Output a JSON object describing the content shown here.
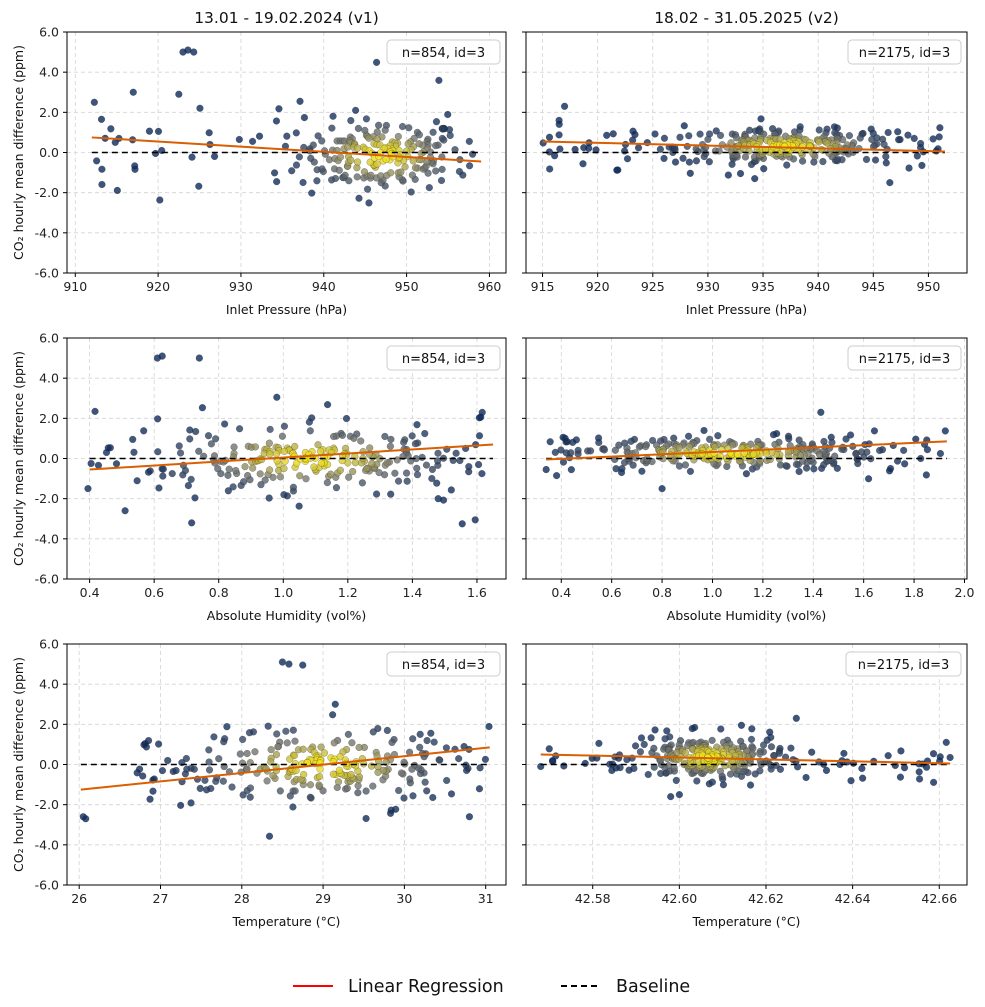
{
  "legend": {
    "regression_label": "Linear Regression",
    "baseline_label": "Baseline",
    "regression_color": "#ff0000",
    "baseline_color": "#000000"
  },
  "colors": {
    "regression": "#d95f02",
    "baseline": "#000000",
    "point_low": "#0d2a5c",
    "point_mid": "#7a7a70",
    "point_high": "#f5e31a",
    "grid": "#d3d3d3"
  },
  "chart_data": [
    {
      "type": "scatter",
      "id": "v1-pressure",
      "title": "13.01 - 19.02.2024 (v1)",
      "xlabel": "Inlet Pressure (hPa)",
      "ylabel": "CO₂ hourly mean difference (ppm)",
      "annotation": "n=854, id=3",
      "xlim": [
        909,
        962
      ],
      "ylim": [
        -6,
        6
      ],
      "xticks": [
        910,
        920,
        930,
        940,
        950,
        960
      ],
      "xtick_labels": [
        "910",
        "920",
        "930",
        "940",
        "950",
        "960"
      ],
      "yticks": [
        -6,
        -4,
        -2,
        0,
        2,
        4,
        6
      ],
      "ytick_labels": [
        "-6.0",
        "-4.0",
        "-2.0",
        "0.0",
        "2.0",
        "4.0",
        "6.0"
      ],
      "regression": {
        "x": [
          912,
          959
        ],
        "y": [
          0.75,
          -0.45
        ]
      },
      "baseline": {
        "x": [
          912,
          959
        ],
        "y": [
          0,
          0
        ]
      },
      "cloud": {
        "cx": 947,
        "cy": -0.15,
        "sx": 5,
        "sy": 0.9,
        "cn": 170,
        "xmin": 912,
        "xmax": 959,
        "un": 60,
        "uy": 0.3,
        "usy": 1.1
      },
      "outliers": [
        [
          923,
          5.0
        ],
        [
          923.6,
          5.1
        ],
        [
          924.3,
          5.0
        ],
        [
          917,
          3.0
        ],
        [
          922.5,
          2.9
        ],
        [
          912.3,
          2.5
        ]
      ]
    },
    {
      "type": "scatter",
      "id": "v2-pressure",
      "title": "18.02 - 31.05.2025 (v2)",
      "xlabel": "Inlet Pressure (hPa)",
      "ylabel": "",
      "annotation": "n=2175, id=3",
      "xlim": [
        913.5,
        953.5
      ],
      "ylim": [
        -6,
        6
      ],
      "xticks": [
        915,
        920,
        925,
        930,
        935,
        940,
        945,
        950
      ],
      "xtick_labels": [
        "915",
        "920",
        "925",
        "930",
        "935",
        "940",
        "945",
        "950"
      ],
      "yticks": [
        -6,
        -4,
        -2,
        0,
        2,
        4,
        6
      ],
      "ytick_labels": [
        "-6.0",
        "-4.0",
        "-2.0",
        "0.0",
        "2.0",
        "4.0",
        "6.0"
      ],
      "regression": {
        "x": [
          915,
          951.5
        ],
        "y": [
          0.55,
          0.05
        ]
      },
      "baseline": {
        "x": [
          915,
          951.5
        ],
        "y": [
          0,
          0
        ]
      },
      "cloud": {
        "cx": 937,
        "cy": 0.3,
        "sx": 5,
        "sy": 0.42,
        "cn": 200,
        "xmin": 915,
        "xmax": 951.5,
        "un": 90,
        "uy": 0.35,
        "usy": 0.55
      },
      "outliers": [
        [
          917,
          2.3
        ],
        [
          916.5,
          1.6
        ],
        [
          946.5,
          -1.5
        ]
      ]
    },
    {
      "type": "scatter",
      "id": "v1-humidity",
      "title": "",
      "xlabel": "Absolute Humidity (vol%)",
      "ylabel": "CO₂ hourly mean difference (ppm)",
      "annotation": "n=854, id=3",
      "xlim": [
        0.33,
        1.69
      ],
      "ylim": [
        -6,
        6
      ],
      "xticks": [
        0.4,
        0.6,
        0.8,
        1.0,
        1.2,
        1.4,
        1.6
      ],
      "xtick_labels": [
        "0.4",
        "0.6",
        "0.8",
        "1.0",
        "1.2",
        "1.4",
        "1.6"
      ],
      "yticks": [
        -6,
        -4,
        -2,
        0,
        2,
        4,
        6
      ],
      "ytick_labels": [
        "-6.0",
        "-4.0",
        "-2.0",
        "0.0",
        "2.0",
        "4.0",
        "6.0"
      ],
      "regression": {
        "x": [
          0.4,
          1.65
        ],
        "y": [
          -0.55,
          0.7
        ]
      },
      "baseline": {
        "x": [
          0.4,
          1.65
        ],
        "y": [
          0,
          0
        ]
      },
      "cloud": {
        "cx": 1.08,
        "cy": 0.0,
        "sx": 0.22,
        "sy": 0.85,
        "cn": 180,
        "xmin": 0.4,
        "xmax": 1.65,
        "un": 70,
        "uy": 0.0,
        "usy": 1.1
      },
      "outliers": [
        [
          0.61,
          5.0
        ],
        [
          0.625,
          5.1
        ],
        [
          0.74,
          5.0
        ],
        [
          0.98,
          3.05
        ],
        [
          0.51,
          -2.6
        ],
        [
          1.48,
          -2.0
        ],
        [
          0.395,
          -1.5
        ]
      ]
    },
    {
      "type": "scatter",
      "id": "v2-humidity",
      "title": "",
      "xlabel": "Absolute Humidity (vol%)",
      "ylabel": "",
      "annotation": "n=2175, id=3",
      "xlim": [
        0.26,
        2.01
      ],
      "ylim": [
        -6,
        6
      ],
      "xticks": [
        0.4,
        0.6,
        0.8,
        1.0,
        1.2,
        1.4,
        1.6,
        1.8,
        2.0
      ],
      "xtick_labels": [
        "0.4",
        "0.6",
        "0.8",
        "1.0",
        "1.2",
        "1.4",
        "1.6",
        "1.8",
        "2.0"
      ],
      "yticks": [
        -6,
        -4,
        -2,
        0,
        2,
        4,
        6
      ],
      "ytick_labels": [
        "-6.0",
        "-4.0",
        "-2.0",
        "0.0",
        "2.0",
        "4.0",
        "6.0"
      ],
      "regression": {
        "x": [
          0.34,
          1.93
        ],
        "y": [
          -0.05,
          0.85
        ]
      },
      "baseline": {
        "x": [
          0.34,
          1.93
        ],
        "y": [
          0,
          0
        ]
      },
      "cloud": {
        "cx": 1.05,
        "cy": 0.25,
        "sx": 0.3,
        "sy": 0.4,
        "cn": 200,
        "xmin": 0.34,
        "xmax": 1.93,
        "un": 90,
        "uy": 0.3,
        "usy": 0.5
      },
      "outliers": [
        [
          1.43,
          2.3
        ],
        [
          0.34,
          -0.55
        ],
        [
          0.8,
          -1.5
        ]
      ]
    },
    {
      "type": "scatter",
      "id": "v1-temperature",
      "title": "",
      "xlabel": "Temperature (°C)",
      "ylabel": "CO₂ hourly mean difference (ppm)",
      "annotation": "n=854, id=3",
      "xlim": [
        25.85,
        31.25
      ],
      "ylim": [
        -6,
        6
      ],
      "xticks": [
        26,
        27,
        28,
        29,
        30,
        31
      ],
      "xtick_labels": [
        "26",
        "27",
        "28",
        "29",
        "30",
        "31"
      ],
      "yticks": [
        -6,
        -4,
        -2,
        0,
        2,
        4,
        6
      ],
      "ytick_labels": [
        "-6.0",
        "-4.0",
        "-2.0",
        "0.0",
        "2.0",
        "4.0",
        "6.0"
      ],
      "regression": {
        "x": [
          26.02,
          31.05
        ],
        "y": [
          -1.25,
          0.85
        ]
      },
      "baseline": {
        "x": [
          26.02,
          31.05
        ],
        "y": [
          0,
          0
        ]
      },
      "cloud": {
        "cx": 29.0,
        "cy": 0.0,
        "sx": 0.8,
        "sy": 0.95,
        "cn": 180,
        "xmin": 26.7,
        "xmax": 31.05,
        "un": 70,
        "uy": -0.1,
        "usy": 1.0
      },
      "outliers": [
        [
          28.5,
          5.1
        ],
        [
          28.58,
          5.0
        ],
        [
          28.75,
          4.95
        ],
        [
          26.05,
          -2.6
        ],
        [
          26.08,
          -2.7
        ],
        [
          29.15,
          3.0
        ],
        [
          30.8,
          -2.6
        ]
      ]
    },
    {
      "type": "scatter",
      "id": "v2-temperature",
      "title": "",
      "xlabel": "Temperature (°C)",
      "ylabel": "",
      "annotation": "n=2175, id=3",
      "xlim": [
        42.5646,
        42.6664
      ],
      "ylim": [
        -6,
        6
      ],
      "xticks": [
        42.58,
        42.6,
        42.62,
        42.64,
        42.66
      ],
      "xtick_labels": [
        "42.58",
        "42.60",
        "42.62",
        "42.64",
        "42.66"
      ],
      "yticks": [
        -6,
        -4,
        -2,
        0,
        2,
        4,
        6
      ],
      "ytick_labels": [
        "-6.0",
        "-4.0",
        "-2.0",
        "0.0",
        "2.0",
        "4.0",
        "6.0"
      ],
      "regression": {
        "x": [
          42.568,
          42.6625
        ],
        "y": [
          0.5,
          0.05
        ]
      },
      "baseline": {
        "x": [
          42.568,
          42.6625
        ],
        "y": [
          0,
          0
        ]
      },
      "cloud": {
        "cx": 42.607,
        "cy": 0.35,
        "sx": 0.0085,
        "sy": 0.55,
        "cn": 220,
        "xmin": 42.568,
        "xmax": 42.6625,
        "un": 70,
        "uy": 0.1,
        "usy": 0.45
      },
      "outliers": [
        [
          42.627,
          2.3
        ],
        [
          42.568,
          -0.1
        ],
        [
          42.6625,
          0.35
        ],
        [
          42.598,
          -1.6
        ],
        [
          42.6,
          -1.5
        ]
      ]
    }
  ]
}
